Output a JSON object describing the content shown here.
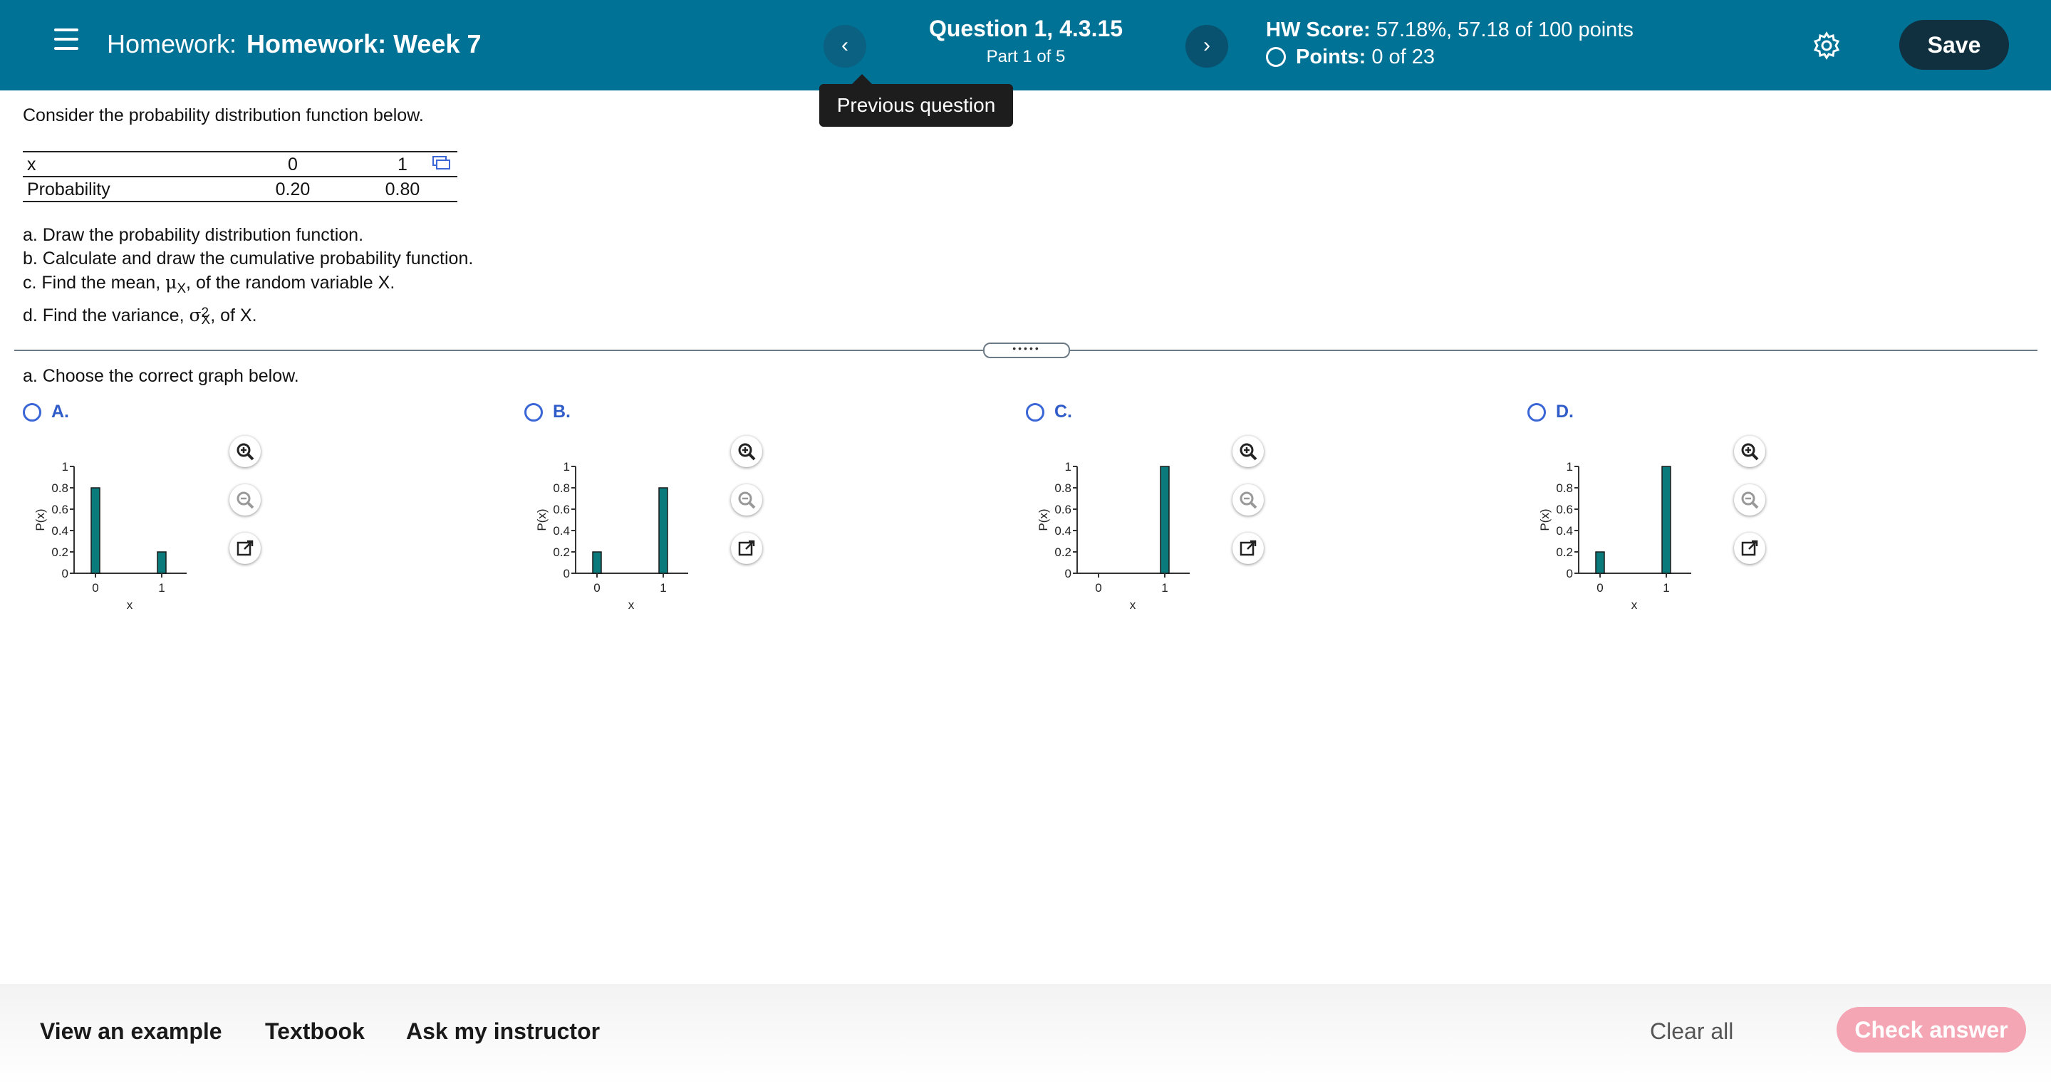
{
  "header": {
    "title_prefix": "Homework:",
    "title": "Homework: Week 7",
    "question_title": "Question 1, 4.3.15",
    "question_part": "Part 1 of 5",
    "score_label": "HW Score:",
    "score_value": "57.18%, 57.18 of 100 points",
    "points_label": "Points:",
    "points_value": "0 of 23",
    "save_label": "Save",
    "prev_symbol": "‹",
    "next_symbol": "›",
    "tooltip": "Previous question",
    "bg_color": "#007296"
  },
  "question": {
    "intro": "Consider the probability distribution function below.",
    "table": {
      "rows": [
        {
          "label": "x",
          "values": [
            "0",
            "1"
          ]
        },
        {
          "label": "Probability",
          "values": [
            "0.20",
            "0.80"
          ]
        }
      ]
    },
    "parts": {
      "a": "a. Draw the probability distribution function.",
      "b": "b. Calculate and draw the cumulative probability function.",
      "c_pre": "c. Find the mean, ",
      "c_mu": "μ",
      "c_sub": "X",
      "c_post": ", of the random variable X.",
      "d_pre": "d. Find the variance, ",
      "d_sigma": "σ",
      "d_sup": "2",
      "d_sub": "X",
      "d_post": ", of X."
    },
    "handle": "•••••",
    "prompt": "a. Choose the correct graph below."
  },
  "options": [
    {
      "letter": "A.",
      "chart_data": {
        "type": "bar",
        "categories": [
          "0",
          "1"
        ],
        "values": [
          0.8,
          0.2
        ],
        "ylabel": "P(x)",
        "xlabel": "x",
        "ylim": [
          0,
          1
        ],
        "yticks": [
          "0",
          "0.2",
          "0.4",
          "0.6",
          "0.8",
          "1"
        ]
      }
    },
    {
      "letter": "B.",
      "chart_data": {
        "type": "bar",
        "categories": [
          "0",
          "1"
        ],
        "values": [
          0.2,
          0.8
        ],
        "ylabel": "P(x)",
        "xlabel": "x",
        "ylim": [
          0,
          1
        ],
        "yticks": [
          "0",
          "0.2",
          "0.4",
          "0.6",
          "0.8",
          "1"
        ]
      }
    },
    {
      "letter": "C.",
      "chart_data": {
        "type": "bar",
        "categories": [
          "0",
          "1"
        ],
        "values": [
          0,
          1.0
        ],
        "ylabel": "P(x)",
        "xlabel": "x",
        "ylim": [
          0,
          1
        ],
        "yticks": [
          "0",
          "0.2",
          "0.4",
          "0.6",
          "0.8",
          "1"
        ]
      }
    },
    {
      "letter": "D.",
      "chart_data": {
        "type": "bar",
        "categories": [
          "0",
          "1"
        ],
        "values": [
          0.2,
          1.0
        ],
        "ylabel": "P(x)",
        "xlabel": "x",
        "ylim": [
          0,
          1
        ],
        "yticks": [
          "0",
          "0.2",
          "0.4",
          "0.6",
          "0.8",
          "1"
        ]
      }
    }
  ],
  "bar_color": "#0b7a7a",
  "footer": {
    "view_example": "View an example",
    "textbook": "Textbook",
    "ask_instructor": "Ask my instructor",
    "clear_all": "Clear all",
    "check_answer": "Check answer"
  }
}
